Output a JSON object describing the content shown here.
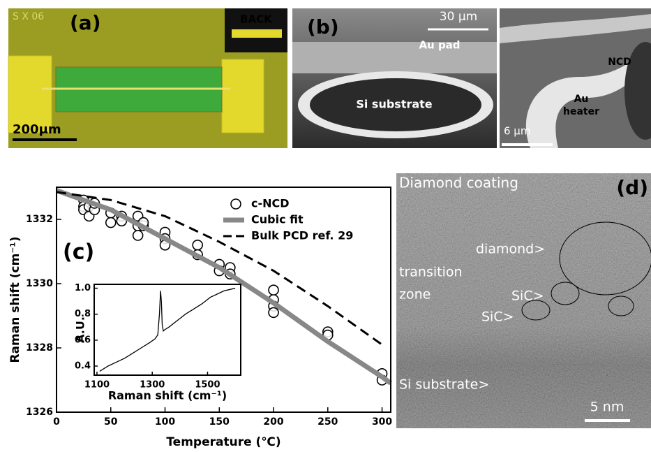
{
  "panels": {
    "a": {
      "label": "(a)",
      "corner_text": "S X 06",
      "inset_label": "BACK",
      "scale_bar": "200μm"
    },
    "b": {
      "label": "(b)",
      "scale_bar": "30 μm",
      "pad": "Au pad",
      "substrate": "Si substrate",
      "ncd": "NCD",
      "heater_1": "Au",
      "heater_2": "heater",
      "scale_bar_2": "6 μm"
    },
    "c": {
      "label": "(c)"
    },
    "d": {
      "label": "(d)",
      "top": "Diamond coating",
      "diamond": "diamond>",
      "transition_1": "transition",
      "transition_2": "zone",
      "sic_1": "SiC>",
      "sic_2": "SiC>",
      "si": "Si substrate>",
      "scale_bar": "5 nm"
    }
  },
  "chart_data": [
    {
      "type": "line",
      "x_label": "Temperature (℃)",
      "y_label": "Raman shift (cm⁻¹)",
      "xlim": [
        0,
        308
      ],
      "xticks": [
        0,
        50,
        100,
        150,
        200,
        250,
        300
      ],
      "ylim": [
        1326,
        1333
      ],
      "yticks": [
        1326,
        1328,
        1330,
        1332
      ],
      "series": [
        {
          "name": "c-NCD",
          "style": "markers",
          "color": "#000000",
          "x": [
            25,
            25,
            25,
            30,
            30,
            35,
            35,
            50,
            50,
            60,
            60,
            75,
            75,
            75,
            80,
            80,
            100,
            100,
            100,
            130,
            130,
            150,
            150,
            160,
            160,
            200,
            200,
            200,
            200,
            250,
            250,
            300,
            300
          ],
          "values": [
            1332.6,
            1332.4,
            1332.3,
            1332.1,
            1332.4,
            1332.3,
            1332.5,
            1332.2,
            1331.9,
            1332.1,
            1331.95,
            1332.1,
            1331.8,
            1331.5,
            1331.8,
            1331.9,
            1331.6,
            1331.4,
            1331.2,
            1331.2,
            1330.9,
            1330.6,
            1330.4,
            1330.5,
            1330.3,
            1329.8,
            1329.5,
            1329.3,
            1329.1,
            1328.5,
            1328.4,
            1327.2,
            1327.0
          ]
        },
        {
          "name": "Cubic fit",
          "style": "solid",
          "color": "#888888",
          "x": [
            0,
            50,
            100,
            150,
            200,
            250,
            300,
            308
          ],
          "values": [
            1332.9,
            1332.3,
            1331.4,
            1330.5,
            1329.4,
            1328.2,
            1327.1,
            1326.9
          ]
        },
        {
          "name": "Bulk PCD ref. 29",
          "style": "dashed",
          "color": "#000000",
          "x": [
            0,
            50,
            100,
            150,
            200,
            250,
            300
          ],
          "values": [
            1332.85,
            1332.6,
            1332.1,
            1331.3,
            1330.4,
            1329.3,
            1328.1
          ]
        }
      ]
    },
    {
      "type": "line",
      "x_label": "Raman shift (cm⁻¹)",
      "y_label": "A.U.",
      "xlim": [
        1090,
        1620
      ],
      "xticks": [
        1100,
        1300,
        1500
      ],
      "ylim": [
        0.33,
        1.03
      ],
      "yticks": [
        0.4,
        0.6,
        0.8,
        {
          "value": 1,
          "label": "1.0"
        }
      ],
      "color": "#000000",
      "x": [
        1110,
        1140,
        1170,
        1200,
        1230,
        1260,
        1290,
        1310,
        1320,
        1326,
        1330,
        1333,
        1336,
        1340,
        1345,
        1360,
        1390,
        1420,
        1450,
        1480,
        1510,
        1540,
        1560,
        1580,
        1600
      ],
      "values": [
        0.36,
        0.4,
        0.43,
        0.46,
        0.5,
        0.54,
        0.58,
        0.61,
        0.64,
        0.8,
        0.98,
        0.9,
        0.72,
        0.67,
        0.68,
        0.7,
        0.75,
        0.8,
        0.84,
        0.88,
        0.93,
        0.96,
        0.98,
        0.99,
        1.0
      ]
    }
  ]
}
